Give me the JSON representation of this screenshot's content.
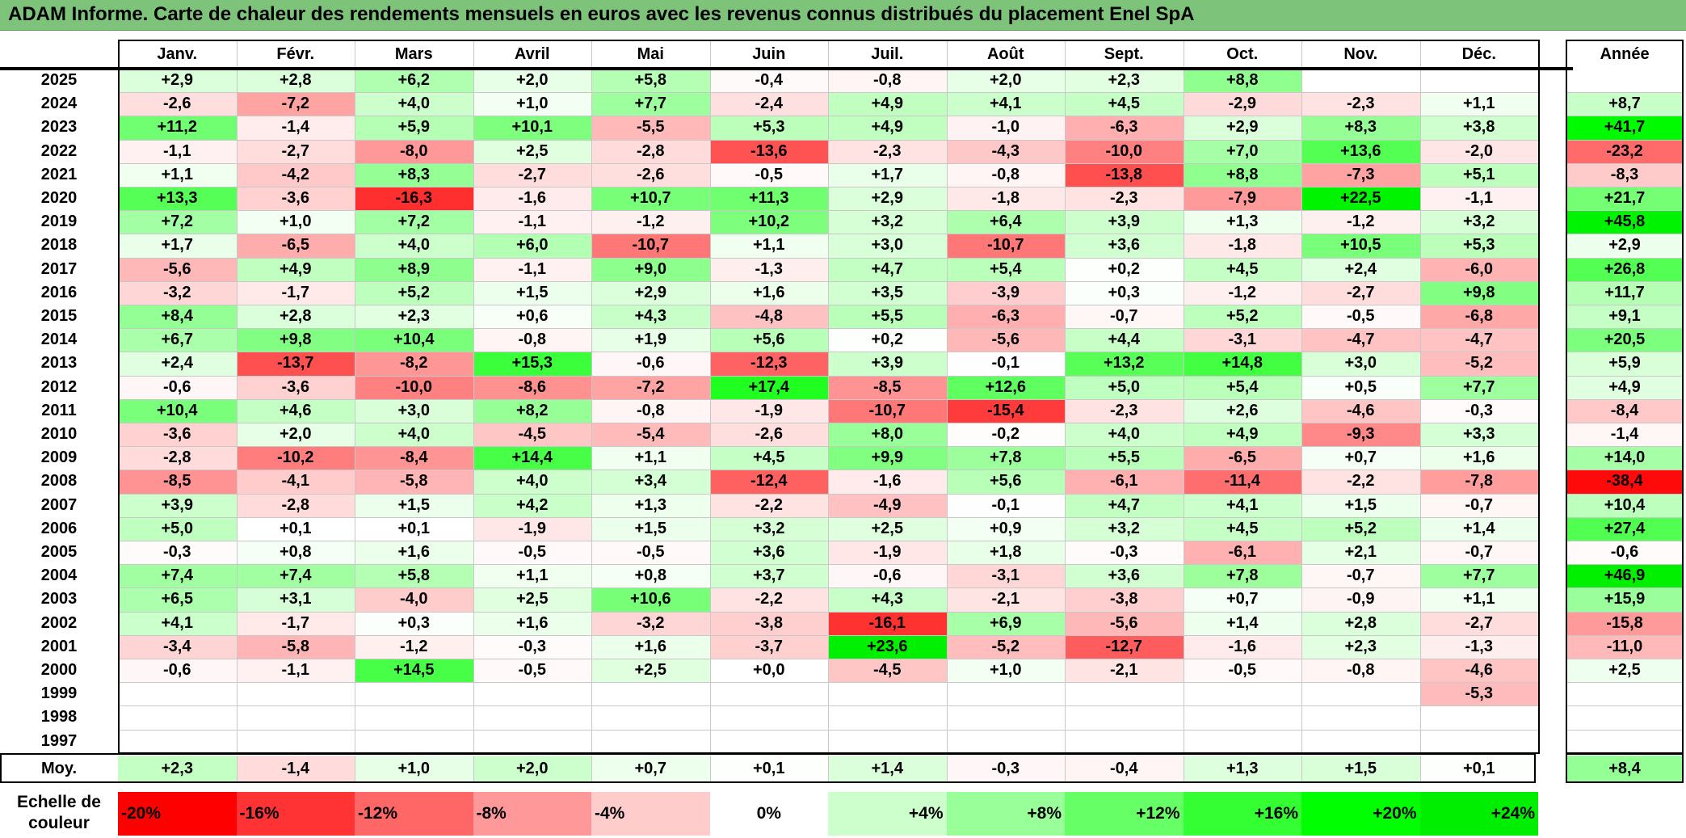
{
  "title": "ADAM Informe. Carte de chaleur des rendements mensuels en euros avec les revenus connus distribués du placement Enel SpA",
  "chart_data": {
    "type": "heatmap",
    "months": [
      "Janv.",
      "Févr.",
      "Mars",
      "Avril",
      "Mai",
      "Juin",
      "Juil.",
      "Août",
      "Sept.",
      "Oct.",
      "Nov.",
      "Déc."
    ],
    "year_header": "Année",
    "rows": [
      {
        "year": "2025",
        "values": [
          2.9,
          2.8,
          6.2,
          2.0,
          5.8,
          -0.4,
          -0.8,
          2.0,
          2.3,
          8.8,
          null,
          null
        ],
        "annual": null
      },
      {
        "year": "2024",
        "values": [
          -2.6,
          -7.2,
          4.0,
          1.0,
          7.7,
          -2.4,
          4.9,
          4.1,
          4.5,
          -2.9,
          -2.3,
          1.1
        ],
        "annual": 8.7
      },
      {
        "year": "2023",
        "values": [
          11.2,
          -1.4,
          5.9,
          10.1,
          -5.5,
          5.3,
          4.9,
          -1.0,
          -6.3,
          2.9,
          8.3,
          3.8
        ],
        "annual": 41.7
      },
      {
        "year": "2022",
        "values": [
          -1.1,
          -2.7,
          -8.0,
          2.5,
          -2.8,
          -13.6,
          -2.3,
          -4.3,
          -10.0,
          7.0,
          13.6,
          -2.0
        ],
        "annual": -23.2
      },
      {
        "year": "2021",
        "values": [
          1.1,
          -4.2,
          8.3,
          -2.7,
          -2.6,
          -0.5,
          1.7,
          -0.8,
          -13.8,
          8.8,
          -7.3,
          5.1
        ],
        "annual": -8.3
      },
      {
        "year": "2020",
        "values": [
          13.3,
          -3.6,
          -16.3,
          -1.6,
          10.7,
          11.3,
          2.9,
          -1.8,
          -2.3,
          -7.9,
          22.5,
          -1.1
        ],
        "annual": 21.7
      },
      {
        "year": "2019",
        "values": [
          7.2,
          1.0,
          7.2,
          -1.1,
          -1.2,
          10.2,
          3.2,
          6.4,
          3.9,
          1.3,
          -1.2,
          3.2
        ],
        "annual": 45.8
      },
      {
        "year": "2018",
        "values": [
          1.7,
          -6.5,
          4.0,
          6.0,
          -10.7,
          1.1,
          3.0,
          -10.7,
          3.6,
          -1.8,
          10.5,
          5.3
        ],
        "annual": 2.9
      },
      {
        "year": "2017",
        "values": [
          -5.6,
          4.9,
          8.9,
          -1.1,
          9.0,
          -1.3,
          4.7,
          5.4,
          0.2,
          4.5,
          2.4,
          -6.0
        ],
        "annual": 26.8
      },
      {
        "year": "2016",
        "values": [
          -3.2,
          -1.7,
          5.2,
          1.5,
          2.9,
          1.6,
          3.5,
          -3.9,
          0.3,
          -1.2,
          -2.7,
          9.8
        ],
        "annual": 11.7
      },
      {
        "year": "2015",
        "values": [
          8.4,
          2.8,
          2.3,
          0.6,
          4.3,
          -4.8,
          5.5,
          -6.3,
          -0.7,
          5.2,
          -0.5,
          -6.8
        ],
        "annual": 9.1
      },
      {
        "year": "2014",
        "values": [
          6.7,
          9.8,
          10.4,
          -0.8,
          1.9,
          5.6,
          0.2,
          -5.6,
          4.4,
          -3.1,
          -4.7,
          -4.7
        ],
        "annual": 20.5
      },
      {
        "year": "2013",
        "values": [
          2.4,
          -13.7,
          -8.2,
          15.3,
          -0.6,
          -12.3,
          3.9,
          -0.1,
          13.2,
          14.8,
          3.0,
          -5.2
        ],
        "annual": 5.9
      },
      {
        "year": "2012",
        "values": [
          -0.6,
          -3.6,
          -10.0,
          -8.6,
          -7.2,
          17.4,
          -8.5,
          12.6,
          5.0,
          5.4,
          0.5,
          7.7
        ],
        "annual": 4.9
      },
      {
        "year": "2011",
        "values": [
          10.4,
          4.6,
          3.0,
          8.2,
          -0.8,
          -1.9,
          -10.7,
          -15.4,
          -2.3,
          2.6,
          -4.6,
          -0.3
        ],
        "annual": -8.4
      },
      {
        "year": "2010",
        "values": [
          -3.6,
          2.0,
          4.0,
          -4.5,
          -5.4,
          -2.6,
          8.0,
          -0.2,
          4.0,
          4.9,
          -9.3,
          3.3
        ],
        "annual": -1.4
      },
      {
        "year": "2009",
        "values": [
          -2.8,
          -10.2,
          -8.4,
          14.4,
          1.1,
          4.5,
          9.9,
          7.8,
          5.5,
          -6.5,
          0.7,
          1.6
        ],
        "annual": 14.0
      },
      {
        "year": "2008",
        "values": [
          -8.5,
          -4.1,
          -5.8,
          4.0,
          3.4,
          -12.4,
          -1.6,
          5.6,
          -6.1,
          -11.4,
          -2.2,
          -7.8
        ],
        "annual": -38.4
      },
      {
        "year": "2007",
        "values": [
          3.9,
          -2.8,
          1.5,
          4.2,
          1.3,
          -2.2,
          -4.9,
          -0.1,
          4.7,
          4.1,
          1.5,
          -0.7
        ],
        "annual": 10.4
      },
      {
        "year": "2006",
        "values": [
          5.0,
          0.1,
          0.1,
          -1.9,
          1.5,
          3.2,
          2.5,
          0.9,
          3.2,
          4.5,
          5.2,
          1.4
        ],
        "annual": 27.4
      },
      {
        "year": "2005",
        "values": [
          -0.3,
          0.8,
          1.6,
          -0.5,
          -0.5,
          3.6,
          -1.9,
          1.8,
          -0.3,
          -6.1,
          2.1,
          -0.7
        ],
        "annual": -0.6
      },
      {
        "year": "2004",
        "values": [
          7.4,
          7.4,
          5.8,
          1.1,
          0.8,
          3.7,
          -0.6,
          -3.1,
          3.6,
          7.8,
          -0.7,
          7.7
        ],
        "annual": 46.9
      },
      {
        "year": "2003",
        "values": [
          6.5,
          3.1,
          -4.0,
          2.5,
          10.6,
          -2.2,
          4.3,
          -2.1,
          -3.8,
          0.7,
          -0.9,
          1.1
        ],
        "annual": 15.9
      },
      {
        "year": "2002",
        "values": [
          4.1,
          -1.7,
          0.3,
          1.6,
          -3.2,
          -3.8,
          -16.1,
          6.9,
          -5.6,
          1.4,
          2.8,
          -2.7
        ],
        "annual": -15.8
      },
      {
        "year": "2001",
        "values": [
          -3.4,
          -5.8,
          -1.2,
          -0.3,
          1.6,
          -3.7,
          23.6,
          -5.2,
          -12.7,
          -1.6,
          2.3,
          -1.3
        ],
        "annual": -11.0
      },
      {
        "year": "2000",
        "values": [
          -0.6,
          -1.1,
          14.5,
          -0.5,
          2.5,
          0.0,
          -4.5,
          1.0,
          -2.1,
          -0.5,
          -0.8,
          -4.6
        ],
        "annual": 2.5
      },
      {
        "year": "1999",
        "values": [
          null,
          null,
          null,
          null,
          null,
          null,
          null,
          null,
          null,
          null,
          null,
          -5.3
        ],
        "annual": null
      },
      {
        "year": "1998",
        "values": [
          null,
          null,
          null,
          null,
          null,
          null,
          null,
          null,
          null,
          null,
          null,
          null
        ],
        "annual": null
      },
      {
        "year": "1997",
        "values": [
          null,
          null,
          null,
          null,
          null,
          null,
          null,
          null,
          null,
          null,
          null,
          null
        ],
        "annual": null
      }
    ],
    "average": {
      "label": "Moy.",
      "values": [
        2.3,
        -1.4,
        1.0,
        2.0,
        0.7,
        0.1,
        1.4,
        -0.3,
        -0.4,
        1.3,
        1.5,
        0.1
      ],
      "annual": 8.4
    },
    "color_scale": {
      "label": "Echelle de couleur",
      "stops": [
        {
          "label": "-20%",
          "value": -20,
          "color": "#ff0000"
        },
        {
          "label": "-16%",
          "value": -16,
          "color": "#ff3333"
        },
        {
          "label": "-12%",
          "value": -12,
          "color": "#ff6666"
        },
        {
          "label": "-8%",
          "value": -8,
          "color": "#ff9999"
        },
        {
          "label": "-4%",
          "value": -4,
          "color": "#ffcccc"
        },
        {
          "label": "0%",
          "value": 0,
          "color": "#ffffff"
        },
        {
          "label": "+4%",
          "value": 4,
          "color": "#ccffcc"
        },
        {
          "label": "+8%",
          "value": 8,
          "color": "#99ff99"
        },
        {
          "label": "+12%",
          "value": 12,
          "color": "#66ff66"
        },
        {
          "label": "+16%",
          "value": 16,
          "color": "#33ff33"
        },
        {
          "label": "+20%",
          "value": 20,
          "color": "#00ff00"
        },
        {
          "label": "+24%",
          "value": 24,
          "color": "#00ee00"
        }
      ]
    }
  }
}
